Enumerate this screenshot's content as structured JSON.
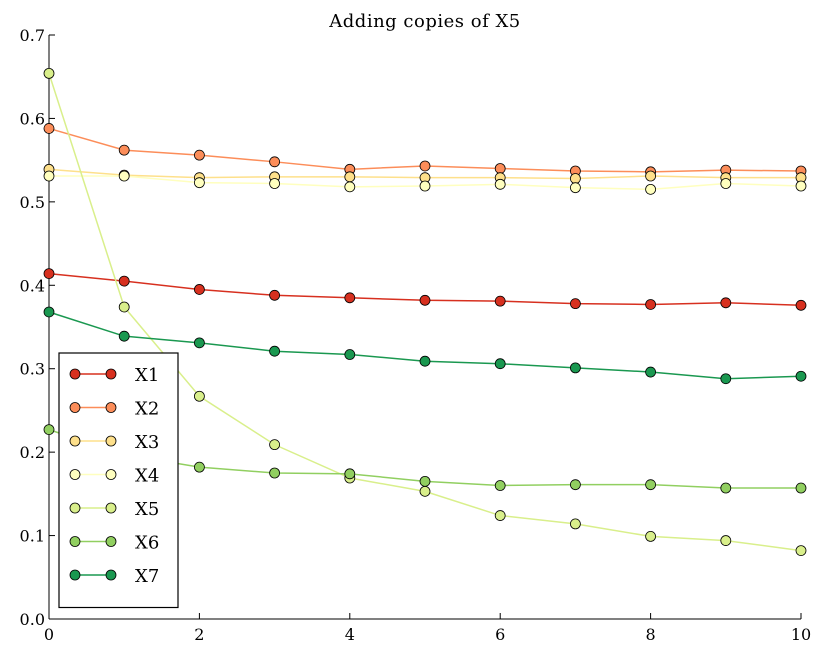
{
  "chart_data": {
    "type": "line",
    "title": "Adding copies of X5",
    "xlabel": "",
    "ylabel": "",
    "xlim": [
      0,
      10
    ],
    "ylim": [
      0.0,
      0.7
    ],
    "x_ticks": [
      0,
      2,
      4,
      6,
      8,
      10
    ],
    "x_tick_labels": [
      "0",
      "2",
      "4",
      "6",
      "8",
      "10"
    ],
    "y_ticks": [
      0.0,
      0.1,
      0.2,
      0.3,
      0.4,
      0.5,
      0.6,
      0.7
    ],
    "y_tick_labels": [
      "0.0",
      "0.1",
      "0.2",
      "0.3",
      "0.4",
      "0.5",
      "0.6",
      "0.7"
    ],
    "grid": false,
    "legend_position": "lower-left",
    "x": [
      0,
      1,
      2,
      3,
      4,
      5,
      6,
      7,
      8,
      9,
      10
    ],
    "series": [
      {
        "name": "X1",
        "color": "#d7301f",
        "values": [
          0.414,
          0.405,
          0.395,
          0.388,
          0.385,
          0.382,
          0.381,
          0.378,
          0.377,
          0.379,
          0.376
        ]
      },
      {
        "name": "X2",
        "color": "#fc8d59",
        "values": [
          0.588,
          0.562,
          0.556,
          0.548,
          0.539,
          0.543,
          0.54,
          0.537,
          0.536,
          0.538,
          0.537
        ]
      },
      {
        "name": "X3",
        "color": "#fee08b",
        "values": [
          0.539,
          0.532,
          0.529,
          0.53,
          0.53,
          0.529,
          0.529,
          0.528,
          0.531,
          0.529,
          0.529
        ]
      },
      {
        "name": "X4",
        "color": "#ffffbf",
        "values": [
          0.531,
          0.531,
          0.523,
          0.522,
          0.518,
          0.519,
          0.521,
          0.517,
          0.515,
          0.522,
          0.519
        ]
      },
      {
        "name": "X5",
        "color": "#d9ef8b",
        "values": [
          0.654,
          0.374,
          0.267,
          0.209,
          0.169,
          0.153,
          0.124,
          0.114,
          0.099,
          0.094,
          0.082
        ]
      },
      {
        "name": "X6",
        "color": "#91cf60",
        "values": [
          0.227,
          0.197,
          0.182,
          0.175,
          0.174,
          0.165,
          0.16,
          0.161,
          0.161,
          0.157,
          0.157
        ]
      },
      {
        "name": "X7",
        "color": "#1a9850",
        "values": [
          0.368,
          0.339,
          0.331,
          0.321,
          0.317,
          0.309,
          0.306,
          0.301,
          0.296,
          0.288,
          0.291
        ]
      }
    ]
  }
}
